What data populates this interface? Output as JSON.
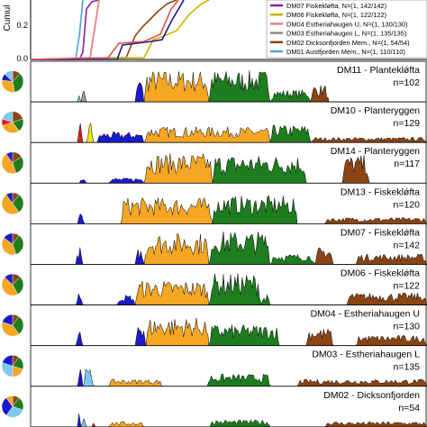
{
  "colors": {
    "sienna": "#8b4513",
    "green": "#1e7d1e",
    "orange": "#f5a623",
    "blue": "#1a1acc",
    "yellow": "#f2e600",
    "lightblue": "#7ec8f0",
    "red": "#e01e1e",
    "gray": "#9a9a9a"
  },
  "chart_data": [
    {
      "type": "line",
      "ylabel": "Cumul",
      "yticks": [
        "0.2",
        "0.0"
      ],
      "ylim": [
        0,
        0.35
      ],
      "legend_position": "right",
      "series": [
        {
          "name": "DM07 Fiskekløfta, N=(1, 142/142)",
          "color": "#8b1fa8"
        },
        {
          "name": "DM06 Fiskekløfta, N=(1, 122/122)",
          "color": "#c8b400"
        },
        {
          "name": "DM04 Estheriahaugen U, N=(1, 130/130)",
          "color": "#f08080"
        },
        {
          "name": "DM03 Estheriahaugen L, N=(1, 135/135)",
          "color": "#8c8c8c"
        },
        {
          "name": "DM02 Dicksonfjorden Mem., N=(1, 54/54)",
          "color": "#8b4513"
        },
        {
          "name": "DM01 Austfjorden Mem., N=(1, 110/110)",
          "color": "#4aa0e0"
        }
      ]
    },
    {
      "type": "area",
      "panels": [
        {
          "label": "DM11 - Planteklǿfta",
          "n": "n=102"
        },
        {
          "label": "DM10 - Planteryggen",
          "n": "n=129"
        },
        {
          "label": "DM14 - Planteryggen",
          "n": "n=117"
        },
        {
          "label": "DM13 - Fiskeklǿfta",
          "n": "n=120"
        },
        {
          "label": "DM07 - Fiskeklǿfta",
          "n": "n=142"
        },
        {
          "label": "DM06 - Fiskeklǿfta",
          "n": "n=122"
        },
        {
          "label": "DM04 - Estheriahaugen U",
          "n": "n=130"
        },
        {
          "label": "DM03 - Estheriahaugen L",
          "n": "n=135"
        },
        {
          "label": "DM02 - Dicksonfjorden",
          "n": "n=54"
        }
      ]
    }
  ]
}
